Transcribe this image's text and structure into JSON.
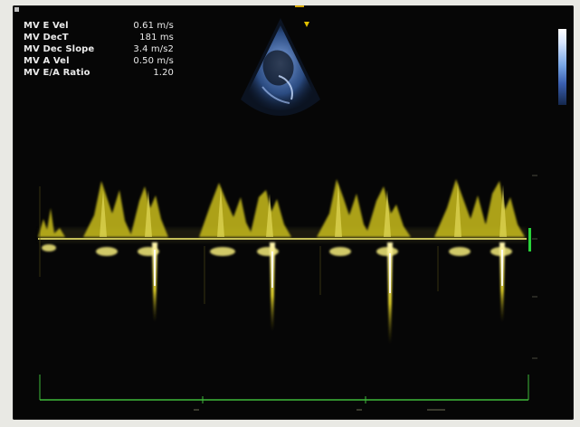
{
  "measurements": [
    {
      "label": "MV E Vel",
      "value": "0.61 m/s"
    },
    {
      "label": "MV DecT",
      "value": "181 ms"
    },
    {
      "label": "MV Dec Slope",
      "value": "3.4 m/s2"
    },
    {
      "label": "MV A Vel",
      "value": "0.50 m/s"
    },
    {
      "label": "MV E/A Ratio",
      "value": "1.20"
    }
  ],
  "colors": {
    "doppler_trace": "#e5d52a",
    "baseline": "#c6c05a",
    "ecg_line": "#3fb83a",
    "marker": "#29d13a"
  },
  "icons": [
    "probe-orientation-icon"
  ]
}
